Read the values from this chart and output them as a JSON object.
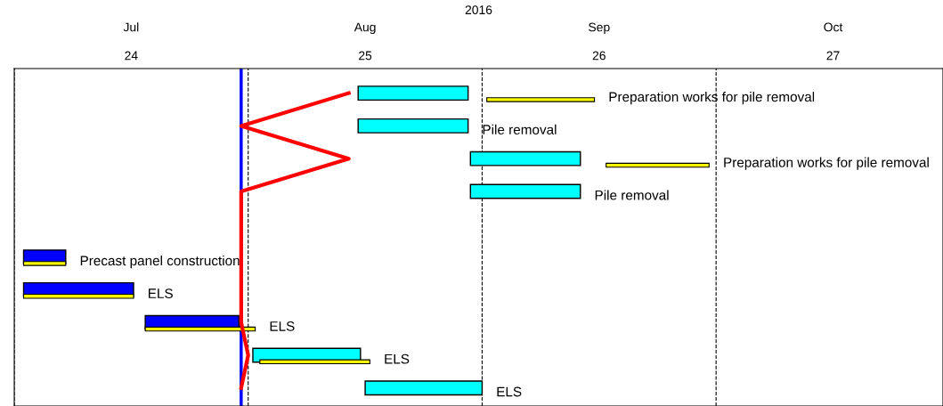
{
  "chart_data": {
    "type": "bar",
    "orientation": "horizontal",
    "title": "2016",
    "categories": [
      null,
      null,
      null,
      null,
      null,
      null,
      null,
      null,
      null,
      null
    ],
    "tick_labels": "x",
    "xlim": [
      23.5,
      27.47
    ],
    "xticks": [
      24,
      25,
      26,
      27
    ],
    "annotations": [
      "Jul",
      "Aug",
      "Sep",
      "Oct"
    ],
    "series": [
      {
        "colors": [
          "#00ffff",
          "#00ffff",
          "#00ffff",
          "#00ffff",
          null,
          "#0000ff",
          "#0000ff",
          "#0000ff",
          "#00ffff",
          "#00ffff"
        ],
        "base": [
          24.97,
          24.97,
          25.45,
          25.45,
          null,
          23.54,
          23.54,
          24.06,
          24.52,
          25.0
        ],
        "values": [
          0.47,
          0.47,
          0.47,
          0.47,
          null,
          0.18,
          0.47,
          0.4,
          0.46,
          0.5
        ],
        "value_labels": [
          null,
          "Pile removal",
          null,
          "Pile removal",
          null,
          null,
          null,
          null,
          null,
          "ELS"
        ]
      },
      {
        "color": "#ffff00",
        "base": [
          25.52,
          null,
          26.03,
          null,
          null,
          23.54,
          23.54,
          24.06,
          24.55,
          null
        ],
        "values": [
          0.46,
          null,
          0.44,
          null,
          null,
          0.18,
          0.47,
          0.47,
          0.47,
          null
        ],
        "value_labels": [
          "Preparation works for pile removal",
          null,
          "Preparation works for pile removal",
          null,
          null,
          "Precast panel construction",
          "ELS",
          "ELS",
          "ELS",
          null
        ]
      },
      {
        "type": "line",
        "color": "#ff0000",
        "values": [
          24.93,
          24.47,
          24.93,
          24.47,
          24.47,
          24.47,
          24.47,
          24.47,
          24.5,
          24.47
        ]
      }
    ],
    "ref_lines": [
      {
        "axis": "x",
        "value": 23.5,
        "color": "#000000",
        "line_style": "dashed"
      },
      {
        "axis": "x",
        "value": 24.5,
        "color": "#000000",
        "line_style": "dashed"
      },
      {
        "axis": "x",
        "value": 25.5,
        "color": "#000000",
        "line_style": "dashed"
      },
      {
        "axis": "x",
        "value": 26.5,
        "color": "#000000",
        "line_style": "dashed"
      },
      {
        "axis": "x",
        "value": 24.47,
        "color": "#0000ff",
        "line_style": "solid"
      }
    ]
  }
}
